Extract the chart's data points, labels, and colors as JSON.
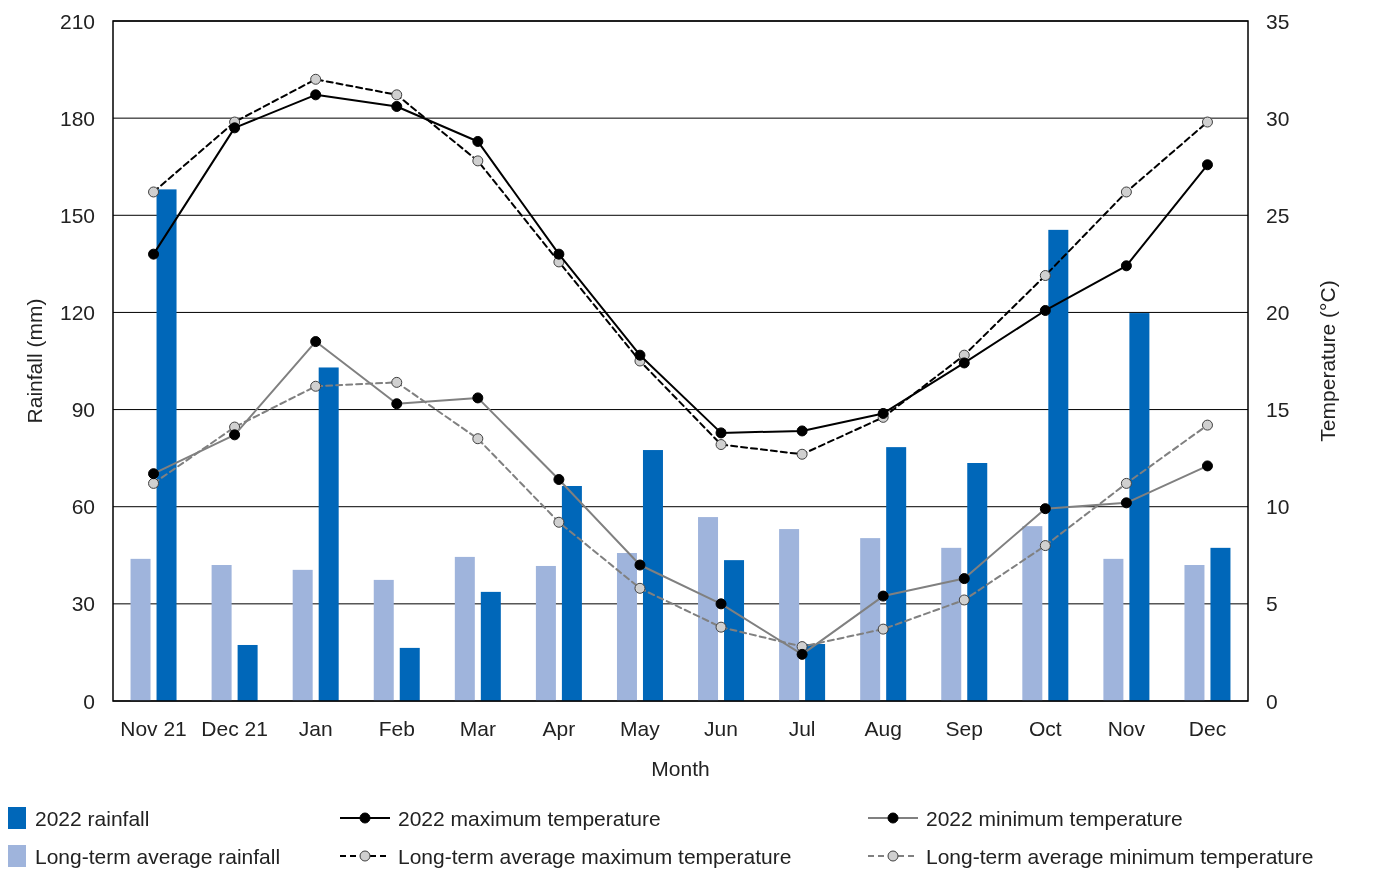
{
  "chart_data": {
    "type": "bar",
    "xlabel": "Month",
    "ylabel": "Rainfall (mm)",
    "y2label": "Temperature (°C)",
    "categories": [
      "Nov 21",
      "Dec 21",
      "Jan",
      "Feb",
      "Mar",
      "Apr",
      "May",
      "Jun",
      "Jul",
      "Aug",
      "Sep",
      "Oct",
      "Nov",
      "Dec"
    ],
    "ylim": [
      0,
      210
    ],
    "yticks": [
      0,
      30,
      60,
      90,
      120,
      150,
      180,
      210
    ],
    "y2lim": [
      0,
      35
    ],
    "y2ticks": [
      0,
      5,
      10,
      15,
      20,
      25,
      30,
      35
    ],
    "grid": "y",
    "legend": "bottom",
    "marker": "circle",
    "series": [
      {
        "name": "2022 rainfall",
        "color": "#0067b9",
        "values": [
          158,
          17.3,
          103,
          16.4,
          33.7,
          66.4,
          77.5,
          43.5,
          17.6,
          78.4,
          73.5,
          145.5,
          119.8,
          47.3
        ]
      },
      {
        "name": "Long-term average rainfall",
        "color": "#9fb4dc",
        "values": [
          43.9,
          42,
          40.5,
          37.4,
          44.5,
          41.7,
          45.7,
          56.8,
          53.1,
          50.3,
          47.3,
          54,
          43.9,
          42
        ]
      },
      {
        "name": "2022 maximum temperature",
        "type": "line",
        "axis": "y2",
        "color": "#000000",
        "line_style": "solid",
        "values": [
          23.0,
          29.5,
          31.2,
          30.6,
          28.8,
          23.0,
          17.8,
          13.8,
          13.9,
          14.8,
          17.4,
          20.1,
          22.4,
          27.6
        ]
      },
      {
        "name": "Long-term average maximum temperature",
        "type": "line",
        "axis": "y2",
        "color": "#000000",
        "line_style": "dashed",
        "values": [
          26.2,
          29.8,
          32.0,
          31.2,
          27.8,
          22.6,
          17.5,
          13.2,
          12.7,
          14.6,
          17.8,
          21.9,
          26.2,
          29.8
        ]
      },
      {
        "name": "2022 minimum temperature",
        "type": "line",
        "axis": "y2",
        "color": "#808080",
        "line_style": "solid",
        "values": [
          11.7,
          13.7,
          18.5,
          15.3,
          15.6,
          11.4,
          7.0,
          5.0,
          2.4,
          5.4,
          6.3,
          9.9,
          10.2,
          12.1
        ]
      },
      {
        "name": "Long-term average minimum temperature",
        "type": "line",
        "axis": "y2",
        "color": "#808080",
        "line_style": "dashed",
        "values": [
          11.2,
          14.1,
          16.2,
          16.4,
          13.5,
          9.2,
          5.8,
          3.8,
          2.8,
          3.7,
          5.2,
          8.0,
          11.2,
          14.2
        ]
      }
    ]
  }
}
